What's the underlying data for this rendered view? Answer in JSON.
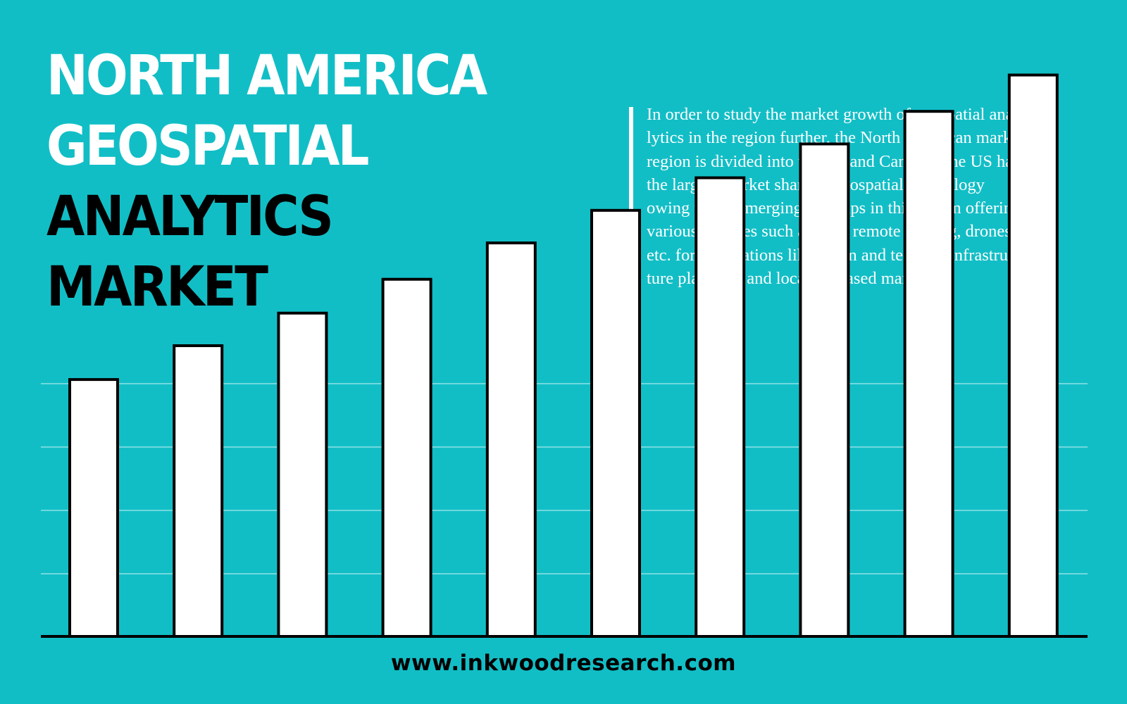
{
  "title_lines": [
    {
      "text": "NORTH AMERICA",
      "color": "#ffffff"
    },
    {
      "text": "GEOSPATIAL",
      "color": "#ffffff"
    },
    {
      "text": "ANALYTICS",
      "color": "#000000"
    },
    {
      "text": "MARKET",
      "color": "#000000"
    }
  ],
  "description_lines": [
    "In order to study the market growth of geospatial ana-",
    "lytics in the region further, the North American market",
    "region is divided into the US and Canada. The US has",
    "the largest market share of geospatial technology",
    "owing to the emerging start-ups in this region offering",
    "various services such as GIS, remote sensing, drones,",
    "etc. for applications like urban and telecom infrastruc-",
    "ture planning, and location-based marketing."
  ],
  "website": "www.inkwoodresearch.com",
  "colors": {
    "background": "#12bec6",
    "bar_fill": "#ffffff",
    "bar_outline": "#000000",
    "gridline": "#8fe2e6",
    "accent_bar": "#ffffff",
    "description_text": "#ffffff",
    "website_text": "#000000"
  },
  "chart_data": {
    "type": "bar",
    "values": [
      20.5,
      23.2,
      25.8,
      28.5,
      31.4,
      34.0,
      36.6,
      39.3,
      41.9,
      44.8
    ],
    "ylim": [
      0,
      50
    ],
    "grid": true,
    "legend": "none",
    "title": "",
    "xlabel": "",
    "ylabel": ""
  }
}
